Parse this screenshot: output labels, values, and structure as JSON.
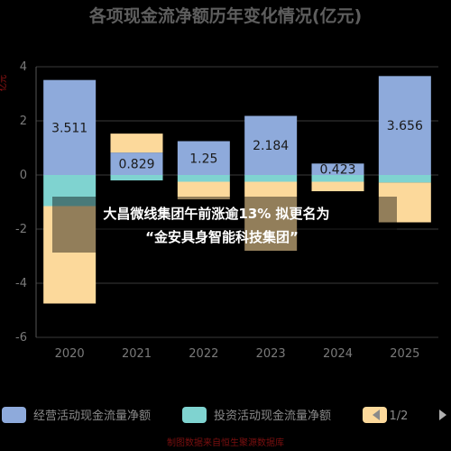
{
  "chart_data": {
    "type": "bar",
    "title": "各项现金流净额历年变化情况(亿元)",
    "unit_label": "亿元",
    "categories": [
      "2020",
      "2021",
      "2022",
      "2023",
      "2024",
      "2025"
    ],
    "ylim": [
      -6,
      4
    ],
    "yticks": [
      4,
      2,
      0,
      -2,
      -4,
      -6
    ],
    "grid": true,
    "legend_position": "bottom",
    "series": [
      {
        "name": "经营活动现金流量净额",
        "color": "#8eaadb",
        "values": [
          3.511,
          0.829,
          1.25,
          2.184,
          0.423,
          3.656
        ],
        "labels": [
          "3.511",
          "0.829",
          "1.25",
          "2.184",
          "0.423",
          "3.656"
        ]
      },
      {
        "name": "投资活动现金流量净额",
        "color": "#7fd3d0",
        "values": [
          -1.15,
          -0.2,
          -0.25,
          -0.25,
          -0.25,
          -0.28
        ]
      },
      {
        "name": "",
        "color": "#fcd99b",
        "values": [
          -3.6,
          0.7,
          -0.65,
          -2.55,
          -0.35,
          -1.47
        ]
      }
    ],
    "legend_page": "1/2"
  },
  "overlay": {
    "line1": "大昌微线集团午前涨逾13% 拟更名为",
    "line2": "“金安具身智能科技集团”"
  },
  "source": "制图数据来自恒生聚源数据库"
}
